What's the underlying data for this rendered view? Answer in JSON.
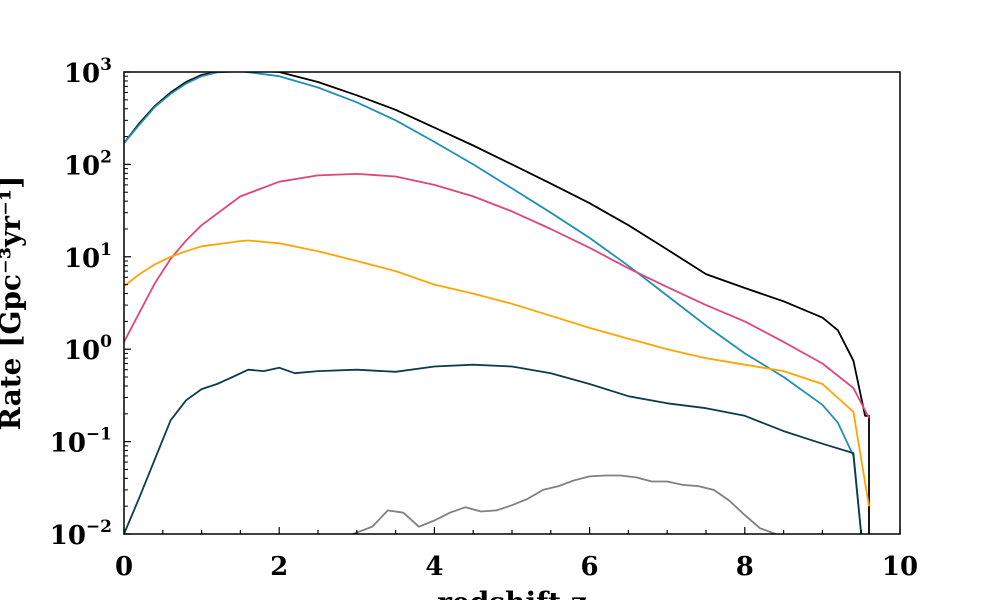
{
  "chart_data": {
    "type": "line",
    "title": "",
    "xlabel": "redshift z",
    "ylabel": "Rate [Gpc⁻³yr⁻¹]",
    "xlim": [
      0,
      10
    ],
    "ylim": [
      0.01,
      1000
    ],
    "yscale": "log",
    "grid": false,
    "xticks": [
      {
        "value": 0,
        "label": "0"
      },
      {
        "value": 2,
        "label": "2"
      },
      {
        "value": 4,
        "label": "4"
      },
      {
        "value": 6,
        "label": "6"
      },
      {
        "value": 8,
        "label": "8"
      },
      {
        "value": 10,
        "label": "10"
      }
    ],
    "yticks": [
      {
        "value": 0.01,
        "base": "10",
        "exp": "−2"
      },
      {
        "value": 0.1,
        "base": "10",
        "exp": "−1"
      },
      {
        "value": 1,
        "base": "10",
        "exp": "0"
      },
      {
        "value": 10,
        "base": "10",
        "exp": "1"
      },
      {
        "value": 100,
        "base": "10",
        "exp": "2"
      },
      {
        "value": 1000,
        "base": "10",
        "exp": "3"
      }
    ],
    "series": [
      {
        "color": "#000000",
        "x": [
          0,
          0.2,
          0.4,
          0.6,
          0.8,
          1.0,
          1.2,
          1.5,
          2.0,
          2.5,
          3.0,
          3.5,
          4.0,
          4.5,
          5.0,
          5.5,
          6.0,
          6.5,
          7.0,
          7.5,
          8.0,
          8.5,
          9.0,
          9.2,
          9.4,
          9.55,
          9.6,
          9.6
        ],
        "y": [
          170,
          280,
          430,
          600,
          780,
          930,
          1000,
          1050,
          1000,
          780,
          560,
          390,
          250,
          160,
          100,
          62,
          38,
          22,
          12,
          6.5,
          4.6,
          3.3,
          2.2,
          1.6,
          0.75,
          0.19,
          0.19,
          0.01
        ]
      },
      {
        "color": "#1f8fb5",
        "x": [
          0,
          0.2,
          0.4,
          0.6,
          0.8,
          1.0,
          1.2,
          1.5,
          2.0,
          2.5,
          3.0,
          3.5,
          4.0,
          4.5,
          5.0,
          5.5,
          6.0,
          6.5,
          7.0,
          7.5,
          8.0,
          8.5,
          9.0,
          9.2,
          9.4,
          9.5
        ],
        "y": [
          170,
          270,
          420,
          580,
          750,
          900,
          990,
          1020,
          900,
          680,
          470,
          300,
          175,
          100,
          55,
          30,
          16,
          8,
          3.8,
          1.8,
          0.9,
          0.5,
          0.25,
          0.16,
          0.07,
          0.01
        ]
      },
      {
        "color": "#e0457b",
        "x": [
          0,
          0.2,
          0.4,
          0.6,
          0.8,
          1.0,
          1.5,
          2.0,
          2.5,
          3.0,
          3.5,
          4.0,
          4.5,
          5.0,
          5.5,
          6.0,
          6.5,
          7.0,
          7.5,
          8.0,
          8.5,
          9.0,
          9.4,
          9.6
        ],
        "y": [
          1.2,
          2.5,
          5.2,
          9.5,
          15,
          22,
          45,
          65,
          76,
          79,
          74,
          60,
          45,
          31,
          20,
          12.5,
          7.5,
          4.7,
          3.0,
          2.0,
          1.2,
          0.7,
          0.38,
          0.18
        ]
      },
      {
        "color": "#ffa500",
        "x": [
          0,
          0.2,
          0.4,
          0.6,
          0.8,
          1.0,
          1.5,
          1.6,
          2.0,
          2.5,
          3.0,
          3.5,
          4.0,
          4.5,
          5.0,
          5.5,
          6.0,
          6.5,
          7.0,
          7.5,
          8.0,
          8.5,
          9.0,
          9.4,
          9.6
        ],
        "y": [
          4.8,
          6.5,
          8.3,
          10,
          11.5,
          13,
          14.8,
          15,
          14,
          11.5,
          9,
          7,
          5,
          4,
          3.1,
          2.3,
          1.7,
          1.3,
          1.0,
          0.8,
          0.68,
          0.58,
          0.42,
          0.21,
          0.02
        ]
      },
      {
        "color": "#0d3b4f",
        "x": [
          0,
          0.2,
          0.4,
          0.6,
          0.8,
          1.0,
          1.2,
          1.4,
          1.6,
          1.8,
          2.0,
          2.2,
          2.5,
          3.0,
          3.5,
          4.0,
          4.5,
          5.0,
          5.5,
          6.0,
          6.5,
          7.0,
          7.5,
          8.0,
          8.5,
          9.0,
          9.4,
          9.5
        ],
        "y": [
          0.01,
          0.025,
          0.065,
          0.17,
          0.28,
          0.37,
          0.42,
          0.5,
          0.6,
          0.58,
          0.63,
          0.55,
          0.58,
          0.6,
          0.57,
          0.65,
          0.68,
          0.65,
          0.55,
          0.42,
          0.31,
          0.26,
          0.23,
          0.19,
          0.13,
          0.095,
          0.075,
          0.01
        ]
      },
      {
        "color": "#808080",
        "x": [
          2.95,
          3.2,
          3.4,
          3.6,
          3.8,
          4.0,
          4.2,
          4.4,
          4.6,
          4.8,
          5.0,
          5.2,
          5.4,
          5.6,
          5.8,
          6.0,
          6.2,
          6.4,
          6.6,
          6.8,
          7.0,
          7.2,
          7.4,
          7.6,
          7.8,
          8.0,
          8.2,
          8.4
        ],
        "y": [
          0.01,
          0.012,
          0.018,
          0.017,
          0.012,
          0.014,
          0.017,
          0.0195,
          0.0175,
          0.018,
          0.0205,
          0.024,
          0.03,
          0.033,
          0.038,
          0.042,
          0.043,
          0.043,
          0.041,
          0.037,
          0.037,
          0.034,
          0.033,
          0.03,
          0.023,
          0.016,
          0.0115,
          0.01
        ]
      }
    ]
  }
}
